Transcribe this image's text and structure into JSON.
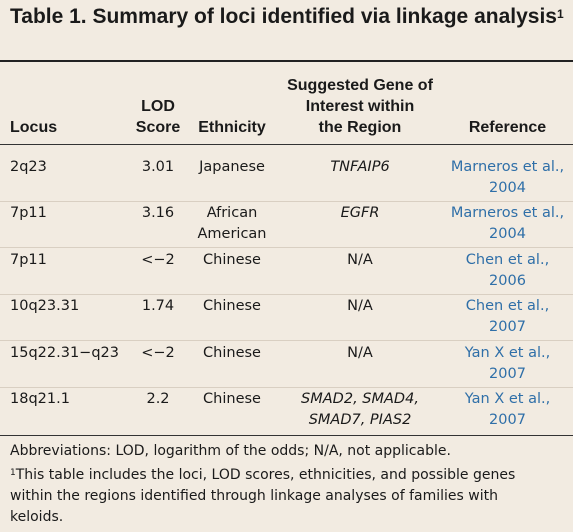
{
  "title": {
    "text": "Table 1.  Summary of loci identified via linkage analysis",
    "footnote_mark": "1"
  },
  "headers": {
    "locus": "Locus",
    "lod_line1": "LOD",
    "lod_line2": "Score",
    "ethnicity": "Ethnicity",
    "gene_line1": "Suggested Gene of",
    "gene_line2": "Interest within",
    "gene_line3": "the Region",
    "reference": "Reference"
  },
  "rows": [
    {
      "locus": "2q23",
      "lod": "3.01",
      "ethnicity": [
        "Japanese"
      ],
      "gene": [
        "TNFAIP6"
      ],
      "gene_italic": true,
      "reference": [
        "Marneros et al.,",
        "2004"
      ]
    },
    {
      "locus": "7p11",
      "lod": "3.16",
      "ethnicity": [
        "African",
        "American"
      ],
      "gene": [
        "EGFR"
      ],
      "gene_italic": true,
      "reference": [
        "Marneros et al.,",
        "2004"
      ]
    },
    {
      "locus": "7p11",
      "lod": "<−2",
      "ethnicity": [
        "Chinese"
      ],
      "gene": [
        "N/A"
      ],
      "gene_italic": false,
      "reference": [
        "Chen et al.,",
        "2006"
      ]
    },
    {
      "locus": "10q23.31",
      "lod": "1.74",
      "ethnicity": [
        "Chinese"
      ],
      "gene": [
        "N/A"
      ],
      "gene_italic": false,
      "reference": [
        "Chen et al.,",
        "2007"
      ]
    },
    {
      "locus": "15q22.31−q23",
      "lod": "<−2",
      "ethnicity": [
        "Chinese"
      ],
      "gene": [
        "N/A"
      ],
      "gene_italic": false,
      "reference": [
        "Yan X et al.,",
        "2007"
      ]
    },
    {
      "locus": "18q21.1",
      "lod": "2.2",
      "ethnicity": [
        "Chinese"
      ],
      "gene": [
        "SMAD2, SMAD4,",
        "SMAD7, PIAS2"
      ],
      "gene_italic": true,
      "reference": [
        "Yan X et al.,",
        "2007"
      ]
    }
  ],
  "footnotes": {
    "abbreviations": "Abbreviations: LOD, logarithm of the odds; N/A, not applicable.",
    "note_mark": "1",
    "note_line1": "This table includes the loci, LOD scores, ethnicities, and possible genes",
    "note_line2": "within the regions identified through linkage analyses of families with",
    "note_line3": "keloids."
  },
  "colors": {
    "background": "#f2ebe1",
    "text": "#1a1a1a",
    "reference_link": "#2f6fa8"
  }
}
